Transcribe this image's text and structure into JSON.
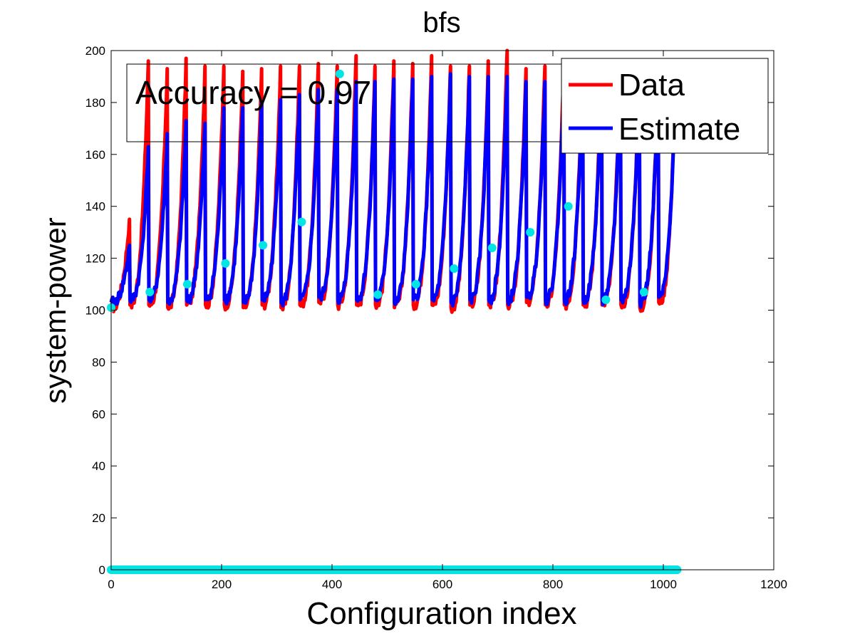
{
  "chart_data": {
    "type": "line",
    "title": "bfs",
    "xlabel": "Configuration index",
    "ylabel": "system-power",
    "xlim": [
      0,
      1200
    ],
    "ylim": [
      0,
      200
    ],
    "xticks": [
      0,
      200,
      400,
      600,
      800,
      1000,
      1200
    ],
    "yticks": [
      0,
      20,
      40,
      60,
      80,
      100,
      120,
      140,
      160,
      180,
      200
    ],
    "grid": false,
    "legend_position": "top-right",
    "annotation": "Accuracy = 0.97",
    "colors": {
      "data": "#ff0000",
      "estimate": "#0000ff",
      "markers": "#00e5e5"
    },
    "sawtooth": {
      "period_x": 34.2,
      "num_cycles": 30,
      "x_start": 0,
      "x_end": 1023,
      "data_low": [
        101,
        102,
        102,
        101,
        102,
        102,
        102,
        101,
        102,
        101,
        102,
        103,
        102,
        102,
        102,
        101,
        102,
        102,
        101,
        102,
        102,
        102,
        103,
        102,
        102,
        102,
        102,
        102,
        101,
        103
      ],
      "data_high": [
        135,
        196,
        193,
        197,
        194,
        194,
        192,
        193,
        194,
        194,
        195,
        194,
        198,
        194,
        196,
        195,
        198,
        194,
        194,
        196,
        200,
        193,
        194,
        194,
        194,
        194,
        192,
        192,
        190,
        190
      ],
      "estimate_low": [
        103,
        104,
        104,
        103,
        104,
        104,
        104,
        103,
        104,
        103,
        104,
        105,
        104,
        104,
        104,
        103,
        104,
        104,
        103,
        104,
        104,
        104,
        105,
        104,
        104,
        104,
        104,
        104,
        103,
        105
      ],
      "estimate_high": [
        125,
        163,
        168,
        173,
        172,
        178,
        178,
        180,
        181,
        183,
        185,
        185,
        188,
        188,
        189,
        189,
        190,
        191,
        190,
        190,
        190,
        188,
        188,
        188,
        188,
        188,
        188,
        188,
        188,
        188
      ]
    },
    "series": [
      {
        "name": "Data",
        "color": "#ff0000"
      },
      {
        "name": "Estimate",
        "color": "#0000ff"
      }
    ],
    "markers": {
      "x": [
        0,
        70,
        138,
        207,
        275,
        345,
        414,
        483,
        552,
        621,
        690,
        759,
        828,
        896,
        965
      ],
      "y": [
        101,
        107,
        110,
        118,
        125,
        134,
        191,
        106,
        110,
        116,
        124,
        130,
        140,
        104,
        107
      ],
      "baseline_x": [
        0,
        1025
      ],
      "baseline_y": 0
    }
  }
}
